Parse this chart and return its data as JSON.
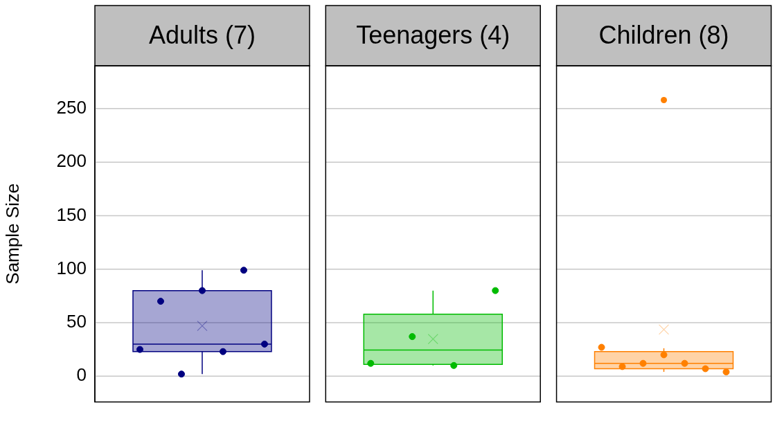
{
  "chart_data": {
    "type": "box",
    "categories": [
      "Adults (7)",
      "Teenagers (4)",
      "Children (8)"
    ],
    "ylabel": "Sample Size",
    "ylim": [
      -24,
      290
    ],
    "yticks": [
      0,
      50,
      100,
      150,
      200,
      250
    ],
    "grid": "y",
    "colors": [
      "#000080",
      "#00bb00",
      "#ff8000"
    ],
    "boxes": [
      {
        "low": 2,
        "q1": 23,
        "median": 30,
        "q3": 80,
        "high": 99,
        "mean": 47
      },
      {
        "low": 10,
        "q1": 11,
        "median": 24.5,
        "q3": 58,
        "high": 80,
        "mean": 34.75
      },
      {
        "low": 4,
        "q1": 7,
        "median": 12,
        "q3": 23,
        "high": 26,
        "mean": 43.6,
        "outliers": [
          258
        ]
      }
    ],
    "series": [
      {
        "type": "scatter",
        "x": [
          "Adults (7)",
          "Adults (7)",
          "Adults (7)",
          "Adults (7)",
          "Adults (7)",
          "Adults (7)",
          "Adults (7)",
          "Teenagers (4)",
          "Teenagers (4)",
          "Teenagers (4)",
          "Teenagers (4)",
          "Children (8)",
          "Children (8)",
          "Children (8)",
          "Children (8)",
          "Children (8)",
          "Children (8)",
          "Children (8)"
        ],
        "values": [
          25,
          70,
          2,
          80,
          23,
          99,
          30,
          12,
          37,
          10,
          80,
          27,
          9,
          12,
          20,
          12,
          7,
          4
        ],
        "colors": [
          "#000080",
          "#000080",
          "#000080",
          "#000080",
          "#000080",
          "#000080",
          "#000080",
          "#00bb00",
          "#00bb00",
          "#00bb00",
          "#00bb00",
          "#ff8000",
          "#ff8000",
          "#ff8000",
          "#ff8000",
          "#ff8000",
          "#ff8000",
          "#ff8000"
        ],
        "marker": "circle"
      }
    ]
  }
}
